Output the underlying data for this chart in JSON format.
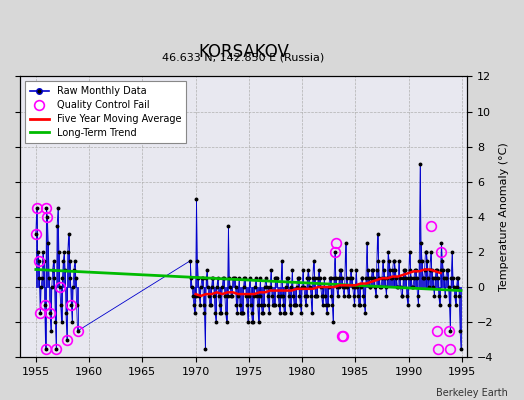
{
  "title": "KORSAKOV",
  "subtitle": "46.633 N, 142.850 E (Russia)",
  "ylabel_right": "Temperature Anomaly (°C)",
  "watermark": "Berkeley Earth",
  "xlim": [
    1953.5,
    1995.5
  ],
  "ylim": [
    -4,
    12
  ],
  "yticks": [
    -4,
    -2,
    0,
    2,
    4,
    6,
    8,
    10,
    12
  ],
  "xticks": [
    1955,
    1960,
    1965,
    1970,
    1975,
    1980,
    1985,
    1990,
    1995
  ],
  "background_color": "#d8d8d8",
  "plot_bg_color": "#e8e8f0",
  "raw_color": "#0000cc",
  "avg_color": "#ff0000",
  "trend_color": "#00bb00",
  "qc_color": "#ff00ff",
  "raw_data_years": [
    1955.0,
    1955.083,
    1955.167,
    1955.25,
    1955.333,
    1955.417,
    1955.5,
    1955.583,
    1955.667,
    1955.75,
    1955.833,
    1955.917,
    1956.0,
    1956.083,
    1956.167,
    1956.25,
    1956.333,
    1956.417,
    1956.5,
    1956.583,
    1956.667,
    1956.75,
    1956.833,
    1956.917,
    1957.0,
    1957.083,
    1957.167,
    1957.25,
    1957.333,
    1957.417,
    1957.5,
    1957.583,
    1957.667,
    1957.75,
    1957.833,
    1957.917,
    1958.0,
    1958.083,
    1958.167,
    1958.25,
    1958.333,
    1958.417,
    1958.5,
    1958.583,
    1958.667,
    1958.75,
    1958.833,
    1958.917,
    1969.5,
    1969.583,
    1969.667,
    1969.75,
    1969.833,
    1969.917,
    1970.0,
    1970.083,
    1970.167,
    1970.25,
    1970.333,
    1970.417,
    1970.5,
    1970.583,
    1970.667,
    1970.75,
    1970.833,
    1970.917,
    1971.0,
    1971.083,
    1971.167,
    1971.25,
    1971.333,
    1971.417,
    1971.5,
    1971.583,
    1971.667,
    1971.75,
    1971.833,
    1971.917,
    1972.0,
    1972.083,
    1972.167,
    1972.25,
    1972.333,
    1972.417,
    1972.5,
    1972.583,
    1972.667,
    1972.75,
    1972.833,
    1972.917,
    1973.0,
    1973.083,
    1973.167,
    1973.25,
    1973.333,
    1973.417,
    1973.5,
    1973.583,
    1973.667,
    1973.75,
    1973.833,
    1973.917,
    1974.0,
    1974.083,
    1974.167,
    1974.25,
    1974.333,
    1974.417,
    1974.5,
    1974.583,
    1974.667,
    1974.75,
    1974.833,
    1974.917,
    1975.0,
    1975.083,
    1975.167,
    1975.25,
    1975.333,
    1975.417,
    1975.5,
    1975.583,
    1975.667,
    1975.75,
    1975.833,
    1975.917,
    1976.0,
    1976.083,
    1976.167,
    1976.25,
    1976.333,
    1976.417,
    1976.5,
    1976.583,
    1976.667,
    1976.75,
    1976.833,
    1976.917,
    1977.0,
    1977.083,
    1977.167,
    1977.25,
    1977.333,
    1977.417,
    1977.5,
    1977.583,
    1977.667,
    1977.75,
    1977.833,
    1977.917,
    1978.0,
    1978.083,
    1978.167,
    1978.25,
    1978.333,
    1978.417,
    1978.5,
    1978.583,
    1978.667,
    1978.75,
    1978.833,
    1978.917,
    1979.0,
    1979.083,
    1979.167,
    1979.25,
    1979.333,
    1979.417,
    1979.5,
    1979.583,
    1979.667,
    1979.75,
    1979.833,
    1979.917,
    1980.0,
    1980.083,
    1980.167,
    1980.25,
    1980.333,
    1980.417,
    1980.5,
    1980.583,
    1980.667,
    1980.75,
    1980.833,
    1980.917,
    1981.0,
    1981.083,
    1981.167,
    1981.25,
    1981.333,
    1981.417,
    1981.5,
    1981.583,
    1981.667,
    1981.75,
    1981.833,
    1981.917,
    1982.0,
    1982.083,
    1982.167,
    1982.25,
    1982.333,
    1982.417,
    1982.5,
    1982.583,
    1982.667,
    1982.75,
    1982.833,
    1982.917,
    1983.0,
    1983.083,
    1983.167,
    1983.25,
    1983.333,
    1983.417,
    1983.5,
    1983.583,
    1983.667,
    1983.75,
    1983.833,
    1983.917,
    1984.0,
    1984.083,
    1984.167,
    1984.25,
    1984.333,
    1984.417,
    1984.5,
    1984.583,
    1984.667,
    1984.75,
    1984.833,
    1984.917,
    1985.0,
    1985.083,
    1985.167,
    1985.25,
    1985.333,
    1985.417,
    1985.5,
    1985.583,
    1985.667,
    1985.75,
    1985.833,
    1985.917,
    1986.0,
    1986.083,
    1986.167,
    1986.25,
    1986.333,
    1986.417,
    1986.5,
    1986.583,
    1986.667,
    1986.75,
    1986.833,
    1986.917,
    1987.0,
    1987.083,
    1987.167,
    1987.25,
    1987.333,
    1987.417,
    1987.5,
    1987.583,
    1987.667,
    1987.75,
    1987.833,
    1987.917,
    1988.0,
    1988.083,
    1988.167,
    1988.25,
    1988.333,
    1988.417,
    1988.5,
    1988.583,
    1988.667,
    1988.75,
    1988.833,
    1988.917,
    1989.0,
    1989.083,
    1989.167,
    1989.25,
    1989.333,
    1989.417,
    1989.5,
    1989.583,
    1989.667,
    1989.75,
    1989.833,
    1989.917,
    1990.0,
    1990.083,
    1990.167,
    1990.25,
    1990.333,
    1990.417,
    1990.5,
    1990.583,
    1990.667,
    1990.75,
    1990.833,
    1990.917,
    1991.0,
    1991.083,
    1991.167,
    1991.25,
    1991.333,
    1991.417,
    1991.5,
    1991.583,
    1991.667,
    1991.75,
    1991.833,
    1991.917,
    1992.0,
    1992.083,
    1992.167,
    1992.25,
    1992.333,
    1992.417,
    1992.5,
    1992.583,
    1992.667,
    1992.75,
    1992.833,
    1992.917,
    1993.0,
    1993.083,
    1993.167,
    1993.25,
    1993.333,
    1993.417,
    1993.5,
    1993.583,
    1993.667,
    1993.75,
    1993.833,
    1993.917,
    1994.0,
    1994.083,
    1994.167,
    1994.25,
    1994.333,
    1994.417,
    1994.5,
    1994.583,
    1994.667,
    1994.75,
    1994.833,
    1994.917
  ],
  "raw_data_values": [
    3.0,
    4.5,
    2.0,
    1.5,
    0.5,
    -1.5,
    0.0,
    0.5,
    2.0,
    1.5,
    -1.0,
    -3.5,
    4.5,
    4.0,
    2.5,
    0.5,
    -1.5,
    -2.5,
    0.0,
    1.0,
    1.5,
    0.5,
    -2.0,
    -3.5,
    3.5,
    4.5,
    2.0,
    0.0,
    -1.0,
    -2.0,
    0.5,
    1.5,
    2.0,
    1.0,
    -1.5,
    -3.0,
    2.0,
    3.0,
    1.5,
    0.5,
    -1.0,
    -2.0,
    0.0,
    1.0,
    1.5,
    0.5,
    -1.0,
    -2.5,
    1.5,
    0.5,
    0.0,
    -0.5,
    -1.0,
    -1.5,
    -0.5,
    5.0,
    1.5,
    0.5,
    -0.5,
    -1.0,
    0.0,
    0.5,
    0.5,
    -1.0,
    -1.5,
    -3.5,
    0.5,
    1.0,
    0.0,
    -0.5,
    -1.0,
    -1.0,
    0.0,
    0.5,
    0.5,
    -0.5,
    -1.5,
    -2.0,
    0.0,
    0.5,
    -0.5,
    -1.0,
    -1.5,
    -1.5,
    0.0,
    0.5,
    0.5,
    -0.5,
    -1.5,
    -2.0,
    -0.5,
    3.5,
    0.5,
    0.0,
    -0.5,
    -0.5,
    0.5,
    0.5,
    0.5,
    0.0,
    -1.0,
    -1.5,
    -0.5,
    0.5,
    -1.0,
    -1.5,
    -1.5,
    -1.5,
    0.0,
    0.5,
    0.5,
    -0.5,
    -1.0,
    -2.0,
    -0.5,
    0.5,
    -1.0,
    -1.5,
    -2.0,
    -2.0,
    -0.5,
    0.0,
    0.5,
    -0.5,
    -1.0,
    -2.0,
    -0.5,
    0.5,
    -1.0,
    -1.5,
    -1.5,
    -1.0,
    0.0,
    0.5,
    0.0,
    -0.5,
    -1.0,
    -1.5,
    0.0,
    1.0,
    -0.5,
    -1.0,
    -1.0,
    -1.0,
    0.5,
    0.5,
    0.5,
    -0.5,
    -1.0,
    -1.5,
    -0.5,
    1.5,
    -0.5,
    -1.0,
    -1.5,
    -1.5,
    0.0,
    0.5,
    0.5,
    -0.5,
    -1.0,
    -1.5,
    0.0,
    1.0,
    -0.5,
    -1.0,
    -1.0,
    -1.0,
    0.0,
    0.5,
    0.5,
    -0.5,
    -1.0,
    -1.5,
    0.0,
    1.0,
    0.0,
    -0.5,
    -1.0,
    -0.5,
    0.5,
    1.0,
    0.5,
    0.0,
    -0.5,
    -1.5,
    0.5,
    1.5,
    0.5,
    -0.5,
    -0.5,
    -0.5,
    0.5,
    1.0,
    0.5,
    0.0,
    -0.5,
    -1.0,
    -0.5,
    0.5,
    -0.5,
    -1.0,
    -1.5,
    -1.0,
    0.0,
    0.5,
    0.5,
    -0.5,
    -1.0,
    -2.0,
    0.5,
    2.0,
    0.5,
    0.0,
    -0.5,
    0.0,
    0.5,
    1.0,
    1.0,
    0.5,
    0.0,
    -0.5,
    0.0,
    2.5,
    0.5,
    0.0,
    -0.5,
    -0.5,
    0.5,
    1.0,
    0.5,
    0.0,
    -0.5,
    -1.0,
    0.0,
    1.0,
    0.0,
    -0.5,
    -1.0,
    -1.0,
    0.0,
    0.5,
    0.5,
    -0.5,
    -1.0,
    -1.5,
    0.5,
    2.5,
    1.0,
    0.5,
    0.0,
    0.0,
    0.5,
    1.0,
    1.0,
    0.5,
    0.0,
    -0.5,
    1.0,
    3.0,
    1.5,
    0.5,
    0.0,
    0.0,
    0.5,
    1.5,
    1.0,
    0.5,
    0.0,
    -0.5,
    0.5,
    2.0,
    1.5,
    1.0,
    0.5,
    0.5,
    1.0,
    1.5,
    1.5,
    1.0,
    0.5,
    0.0,
    0.0,
    1.5,
    0.5,
    0.0,
    -0.5,
    -0.5,
    0.5,
    1.0,
    1.0,
    0.5,
    -0.5,
    -1.0,
    0.5,
    2.0,
    1.0,
    0.5,
    0.0,
    0.0,
    0.5,
    1.0,
    1.0,
    0.5,
    -0.5,
    -1.0,
    1.5,
    7.0,
    2.5,
    1.5,
    0.5,
    0.5,
    1.0,
    2.0,
    2.0,
    1.5,
    0.5,
    0.0,
    1.0,
    2.0,
    1.0,
    0.5,
    0.0,
    -0.5,
    0.5,
    1.0,
    1.0,
    0.5,
    -0.5,
    -1.0,
    1.0,
    2.5,
    1.5,
    1.0,
    0.5,
    -0.5,
    0.5,
    1.0,
    1.0,
    0.0,
    -1.0,
    -2.5,
    0.5,
    2.0,
    0.5,
    0.0,
    -0.5,
    -1.0,
    0.0,
    0.5,
    0.5,
    -0.5,
    -2.5,
    -3.5
  ],
  "qc_fail_points": [
    [
      1955.0,
      3.0
    ],
    [
      1955.083,
      4.5
    ],
    [
      1955.25,
      1.5
    ],
    [
      1956.0,
      4.5
    ],
    [
      1956.083,
      4.0
    ],
    [
      1955.417,
      -1.5
    ],
    [
      1955.833,
      -1.0
    ],
    [
      1955.917,
      -3.5
    ],
    [
      1956.333,
      -1.5
    ],
    [
      1956.917,
      -3.5
    ],
    [
      1957.25,
      0.0
    ],
    [
      1957.917,
      -3.0
    ],
    [
      1958.333,
      -1.0
    ],
    [
      1958.917,
      -2.5
    ],
    [
      1983.083,
      2.0
    ],
    [
      1983.167,
      2.5
    ],
    [
      1983.75,
      -2.8
    ],
    [
      1983.833,
      -2.8
    ],
    [
      1992.083,
      3.5
    ],
    [
      1992.667,
      -2.5
    ],
    [
      1992.75,
      -3.5
    ],
    [
      1993.083,
      2.0
    ],
    [
      1993.75,
      -2.5
    ],
    [
      1993.917,
      -3.5
    ]
  ],
  "trend_x": [
    1955.0,
    1994.917
  ],
  "trend_y": [
    1.0,
    -0.2
  ],
  "moving_avg_x": [
    1970.0,
    1970.5,
    1971.0,
    1971.5,
    1972.0,
    1972.5,
    1973.0,
    1973.5,
    1974.0,
    1974.5,
    1975.0,
    1975.5,
    1976.0,
    1976.5,
    1977.0,
    1977.5,
    1978.0,
    1978.5,
    1979.0,
    1979.5,
    1980.0,
    1980.5,
    1981.0,
    1981.5,
    1982.0,
    1982.5,
    1983.0,
    1983.5,
    1984.0,
    1984.5,
    1985.0,
    1985.5,
    1986.0,
    1986.5,
    1987.0,
    1987.5,
    1988.0,
    1988.5,
    1989.0,
    1989.5,
    1990.0,
    1990.5,
    1991.0,
    1991.5,
    1992.0,
    1992.5,
    1993.0
  ],
  "moving_avg_y": [
    -0.4,
    -0.5,
    -0.4,
    -0.4,
    -0.3,
    -0.4,
    -0.3,
    -0.3,
    -0.4,
    -0.4,
    -0.4,
    -0.4,
    -0.3,
    -0.3,
    -0.2,
    -0.2,
    -0.2,
    -0.2,
    -0.2,
    -0.1,
    -0.1,
    -0.1,
    -0.1,
    -0.0,
    0.0,
    0.0,
    0.0,
    0.1,
    0.1,
    0.1,
    0.1,
    0.2,
    0.2,
    0.3,
    0.4,
    0.5,
    0.5,
    0.6,
    0.6,
    0.7,
    0.8,
    0.9,
    0.9,
    1.0,
    1.0,
    0.9,
    0.8
  ]
}
